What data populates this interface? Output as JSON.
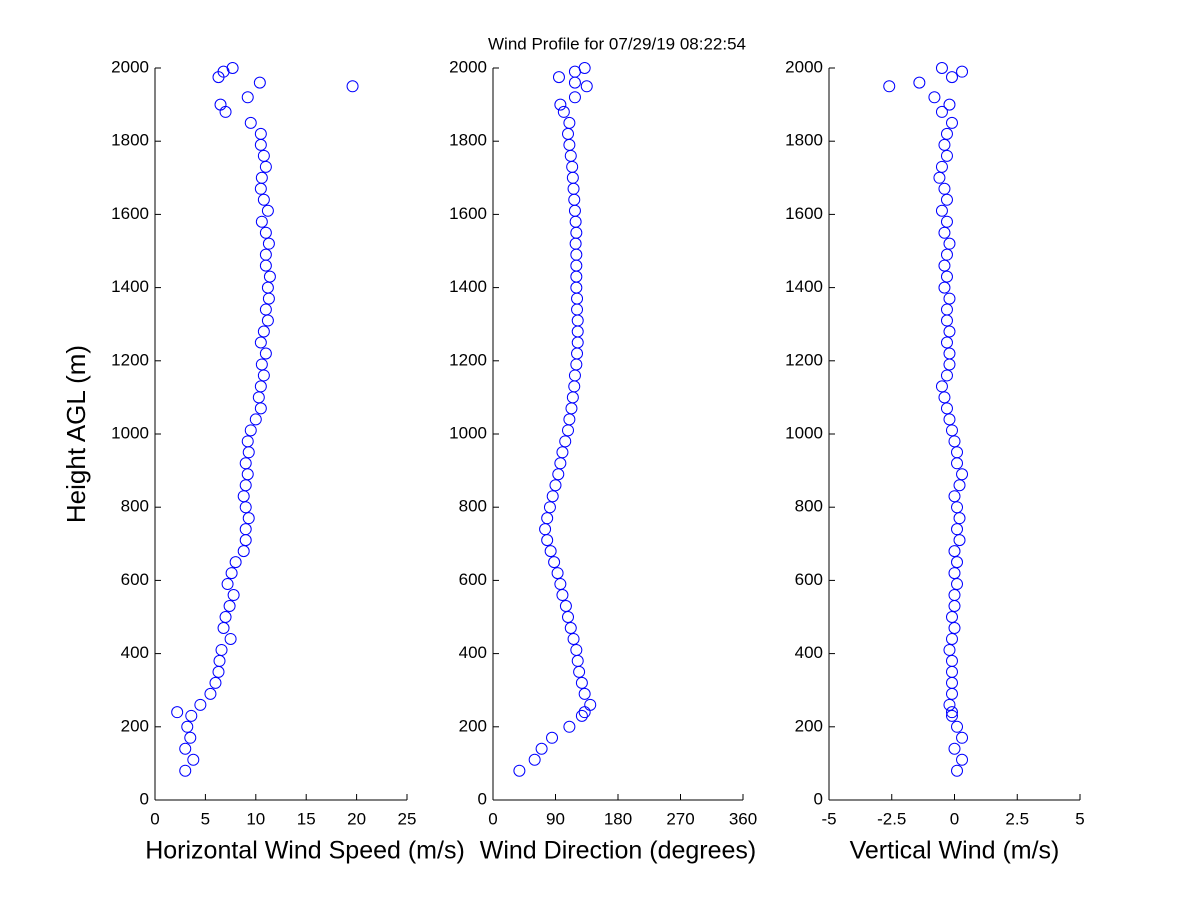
{
  "chart_data": [
    {
      "type": "scatter",
      "title": "Wind Profile for  07/29/19 08:22:54",
      "xlabel": "Horizontal Wind Speed (m/s)",
      "ylabel": "Height AGL (m)",
      "color": "#0000ff",
      "xlim": [
        0,
        25
      ],
      "ylim": [
        0,
        2000
      ],
      "xticks": [
        0,
        5,
        10,
        15,
        20,
        25
      ],
      "yticks": [
        0,
        200,
        400,
        600,
        800,
        1000,
        1200,
        1400,
        1600,
        1800,
        2000
      ],
      "x": [
        3.0,
        3.8,
        3.0,
        3.5,
        3.2,
        3.6,
        2.2,
        4.5,
        5.5,
        6.0,
        6.3,
        6.4,
        6.6,
        7.5,
        6.8,
        7.0,
        7.4,
        7.8,
        7.2,
        7.6,
        8.0,
        8.8,
        9.0,
        9.0,
        9.3,
        9.0,
        8.8,
        9.0,
        9.2,
        9.0,
        9.3,
        9.2,
        9.5,
        10.0,
        10.5,
        10.3,
        10.5,
        10.8,
        10.6,
        11.0,
        10.5,
        10.8,
        11.2,
        11.0,
        11.3,
        11.2,
        11.4,
        11.0,
        11.0,
        11.3,
        11.0,
        10.6,
        11.2,
        10.8,
        10.5,
        10.6,
        11.0,
        10.8,
        10.5,
        10.5,
        9.5,
        7.0,
        6.5,
        9.2,
        19.6,
        10.4,
        6.3,
        6.8,
        7.7
      ],
      "y": [
        80,
        110,
        140,
        170,
        200,
        230,
        240,
        260,
        290,
        320,
        350,
        380,
        410,
        440,
        470,
        500,
        530,
        560,
        590,
        620,
        650,
        680,
        710,
        740,
        770,
        800,
        830,
        860,
        890,
        920,
        950,
        980,
        1010,
        1040,
        1070,
        1100,
        1130,
        1160,
        1190,
        1220,
        1250,
        1280,
        1310,
        1340,
        1370,
        1400,
        1430,
        1460,
        1490,
        1520,
        1550,
        1580,
        1610,
        1640,
        1670,
        1700,
        1730,
        1760,
        1790,
        1820,
        1850,
        1880,
        1900,
        1920,
        1950,
        1960,
        1975,
        1990,
        2000
      ]
    },
    {
      "type": "scatter",
      "xlabel": "Wind Direction (degrees)",
      "color": "#0000ff",
      "xlim": [
        0,
        360
      ],
      "ylim": [
        0,
        2000
      ],
      "xticks": [
        0,
        90,
        180,
        270,
        360
      ],
      "yticks": [
        0,
        200,
        400,
        600,
        800,
        1000,
        1200,
        1400,
        1600,
        1800,
        2000
      ],
      "x": [
        38,
        60,
        70,
        85,
        110,
        128,
        132,
        140,
        132,
        128,
        124,
        122,
        120,
        116,
        112,
        108,
        105,
        100,
        97,
        93,
        88,
        83,
        78,
        75,
        78,
        82,
        86,
        90,
        94,
        97,
        100,
        104,
        108,
        110,
        113,
        115,
        117,
        118,
        120,
        121,
        122,
        122,
        122,
        121,
        121,
        120,
        120,
        120,
        120,
        119,
        120,
        119,
        118,
        117,
        116,
        115,
        114,
        112,
        110,
        108,
        110,
        102,
        97,
        118,
        135,
        118,
        95,
        118,
        132
      ],
      "y": [
        80,
        110,
        140,
        170,
        200,
        230,
        240,
        260,
        290,
        320,
        350,
        380,
        410,
        440,
        470,
        500,
        530,
        560,
        590,
        620,
        650,
        680,
        710,
        740,
        770,
        800,
        830,
        860,
        890,
        920,
        950,
        980,
        1010,
        1040,
        1070,
        1100,
        1130,
        1160,
        1190,
        1220,
        1250,
        1280,
        1310,
        1340,
        1370,
        1400,
        1430,
        1460,
        1490,
        1520,
        1550,
        1580,
        1610,
        1640,
        1670,
        1700,
        1730,
        1760,
        1790,
        1820,
        1850,
        1880,
        1900,
        1920,
        1950,
        1960,
        1975,
        1990,
        2000
      ]
    },
    {
      "type": "scatter",
      "xlabel": "Vertical Wind (m/s)",
      "color": "#0000ff",
      "xlim": [
        -5,
        5
      ],
      "ylim": [
        0,
        2000
      ],
      "xticks": [
        -5,
        -2.5,
        0,
        2.5,
        5
      ],
      "yticks": [
        0,
        200,
        400,
        600,
        800,
        1000,
        1200,
        1400,
        1600,
        1800,
        2000
      ],
      "x": [
        0.1,
        0.3,
        0,
        0.3,
        0.1,
        -0.1,
        -0.1,
        -0.2,
        -0.1,
        -0.1,
        -0.1,
        -0.1,
        -0.2,
        -0.1,
        0,
        -0.1,
        0,
        0,
        0.1,
        0,
        0.1,
        0,
        0.2,
        0.1,
        0.2,
        0.1,
        0,
        0.2,
        0.3,
        0.1,
        0.1,
        0,
        -0.1,
        -0.2,
        -0.3,
        -0.4,
        -0.5,
        -0.3,
        -0.2,
        -0.2,
        -0.3,
        -0.2,
        -0.3,
        -0.3,
        -0.2,
        -0.4,
        -0.3,
        -0.4,
        -0.3,
        -0.2,
        -0.4,
        -0.3,
        -0.5,
        -0.3,
        -0.4,
        -0.6,
        -0.5,
        -0.3,
        -0.4,
        -0.3,
        -0.1,
        -0.5,
        -0.2,
        -0.8,
        -2.6,
        -1.4,
        -0.1,
        0.3,
        -0.5
      ],
      "y": [
        80,
        110,
        140,
        170,
        200,
        230,
        240,
        260,
        290,
        320,
        350,
        380,
        410,
        440,
        470,
        500,
        530,
        560,
        590,
        620,
        650,
        680,
        710,
        740,
        770,
        800,
        830,
        860,
        890,
        920,
        950,
        980,
        1010,
        1040,
        1070,
        1100,
        1130,
        1160,
        1190,
        1220,
        1250,
        1280,
        1310,
        1340,
        1370,
        1400,
        1430,
        1460,
        1490,
        1520,
        1550,
        1580,
        1610,
        1640,
        1670,
        1700,
        1730,
        1760,
        1790,
        1820,
        1850,
        1880,
        1900,
        1920,
        1950,
        1960,
        1975,
        1990,
        2000
      ]
    }
  ]
}
